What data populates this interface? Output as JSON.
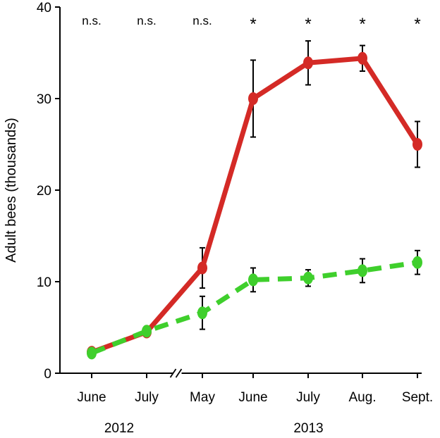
{
  "chart_data": {
    "type": "line",
    "ylabel": "Adult bees (thousands)",
    "ylim": [
      0,
      40
    ],
    "yticks": [
      0,
      10,
      20,
      30,
      40
    ],
    "categories": [
      "June",
      "July",
      "May",
      "June",
      "July",
      "Aug.",
      "Sept."
    ],
    "year_groups": [
      {
        "label": "2012",
        "from": 0,
        "to": 1
      },
      {
        "label": "2013",
        "from": 2,
        "to": 6
      }
    ],
    "axis_break_between": [
      1,
      2
    ],
    "significance": [
      "n.s.",
      "n.s.",
      "n.s.",
      "*",
      "*",
      "*",
      "*"
    ],
    "series": [
      {
        "color": "#d42a26",
        "line_style": "solid",
        "values": [
          2.3,
          4.5,
          11.5,
          30.0,
          33.9,
          34.4,
          25.0
        ],
        "errors": [
          0.3,
          0.5,
          2.2,
          4.2,
          2.4,
          1.4,
          2.5
        ]
      },
      {
        "color": "#3fcf2c",
        "line_style": "dashed",
        "values": [
          2.2,
          4.6,
          6.6,
          10.2,
          10.4,
          11.2,
          12.1
        ],
        "errors": [
          0.3,
          0.5,
          1.8,
          1.3,
          0.9,
          1.3,
          1.3
        ]
      }
    ]
  }
}
